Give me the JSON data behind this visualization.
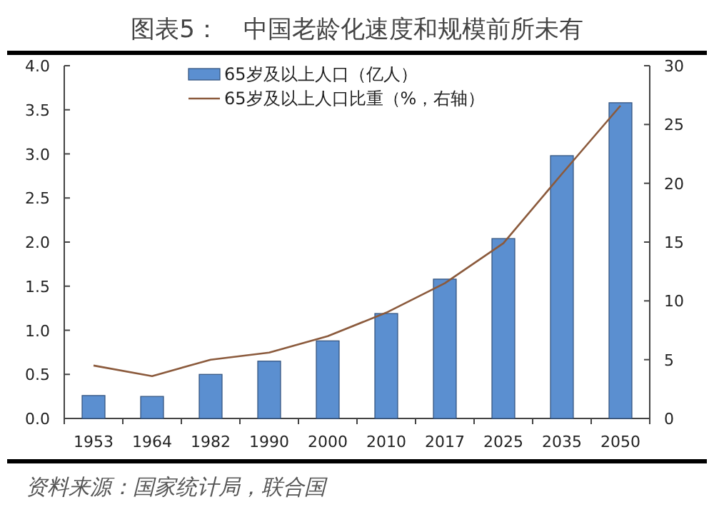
{
  "chart_data": {
    "type": "bar",
    "title": "图表5：　中国老龄化速度和规模前所未有",
    "categories": [
      "1953",
      "1964",
      "1982",
      "1990",
      "2000",
      "2010",
      "2017",
      "2025",
      "2035",
      "2050"
    ],
    "series": [
      {
        "name": "65岁及以上人口（亿人）",
        "color": "#5b8fd0",
        "values": [
          0.26,
          0.25,
          0.5,
          0.65,
          0.88,
          1.19,
          1.58,
          2.04,
          2.98,
          3.58
        ]
      },
      {
        "name": "65岁及以上人口比重（%，右轴）",
        "type": "line",
        "axis": "y2",
        "color": "#8b5a3c",
        "values": [
          4.5,
          3.6,
          5.0,
          5.6,
          7.0,
          9.0,
          11.5,
          14.9,
          20.8,
          26.6
        ]
      }
    ],
    "ylim": [
      0,
      4
    ],
    "yticks": [
      {
        "value": 0,
        "label": "0.0"
      },
      {
        "value": 0.5,
        "label": "0.5"
      },
      {
        "value": 1,
        "label": "1.0"
      },
      {
        "value": 1.5,
        "label": "1.5"
      },
      {
        "value": 2,
        "label": "2.0"
      },
      {
        "value": 2.5,
        "label": "2.5"
      },
      {
        "value": 3,
        "label": "3.0"
      },
      {
        "value": 3.5,
        "label": "3.5"
      },
      {
        "value": 4,
        "label": "4.0"
      }
    ],
    "y2lim": [
      0,
      30
    ],
    "y2ticks": [
      0,
      5,
      10,
      15,
      20,
      25,
      30
    ],
    "legend": "top",
    "grid": false,
    "annotations": [
      "资料来源：国家统计局，联合国"
    ]
  }
}
